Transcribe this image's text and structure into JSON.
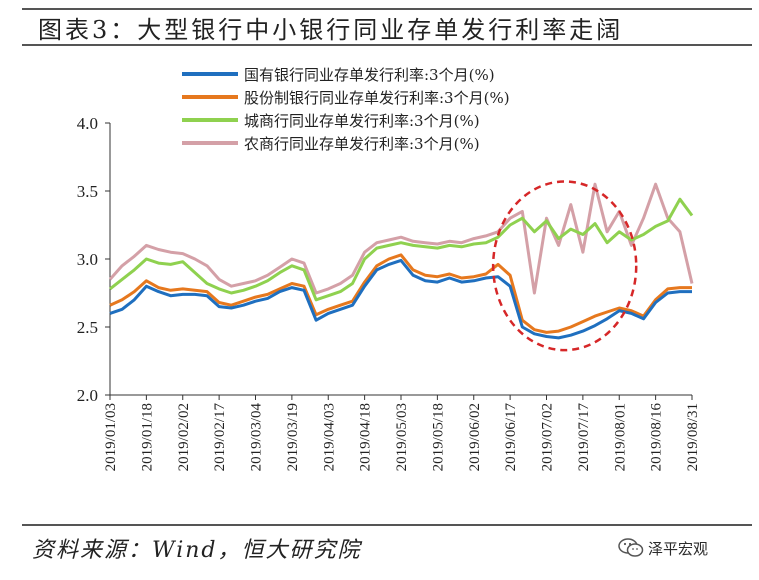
{
  "header": {
    "title": "图表3：大型银行中小银行同业存单发行利率走阔"
  },
  "footer": {
    "source": "资料来源：Wind，恒大研究院",
    "brand": "泽平宏观"
  },
  "chart_data": {
    "type": "line",
    "title": "",
    "xlabel": "",
    "ylabel": "",
    "ylim": [
      2.0,
      4.0
    ],
    "yticks": [
      "2.0",
      "2.5",
      "3.0",
      "3.5",
      "4.0"
    ],
    "x_tick_labels": [
      "2019/01/03",
      "2019/01/18",
      "2019/02/02",
      "2019/02/17",
      "2019/03/04",
      "2019/03/19",
      "2019/04/03",
      "2019/04/18",
      "2019/05/03",
      "2019/05/18",
      "2019/06/02",
      "2019/06/17",
      "2019/07/02",
      "2019/07/17",
      "2019/08/01",
      "2019/08/16",
      "2019/08/31"
    ],
    "legend_position": "top-left",
    "colors": {
      "state": "#1f6fbf",
      "joint": "#e6781e",
      "city": "#8fd14f",
      "rural": "#d4a0a7",
      "annotation": "#d62728"
    },
    "annotation": "dashed red ellipse highlighting 2019/06/10–2019/08/08",
    "x": [
      "2019/01/03",
      "2019/01/08",
      "2019/01/13",
      "2019/01/18",
      "2019/01/23",
      "2019/01/28",
      "2019/02/02",
      "2019/02/07",
      "2019/02/12",
      "2019/02/17",
      "2019/02/22",
      "2019/02/27",
      "2019/03/04",
      "2019/03/09",
      "2019/03/14",
      "2019/03/19",
      "2019/03/24",
      "2019/03/29",
      "2019/04/03",
      "2019/04/08",
      "2019/04/13",
      "2019/04/18",
      "2019/04/23",
      "2019/04/28",
      "2019/05/03",
      "2019/05/08",
      "2019/05/13",
      "2019/05/18",
      "2019/05/23",
      "2019/05/28",
      "2019/06/02",
      "2019/06/07",
      "2019/06/12",
      "2019/06/17",
      "2019/06/22",
      "2019/06/27",
      "2019/07/02",
      "2019/07/07",
      "2019/07/12",
      "2019/07/17",
      "2019/07/22",
      "2019/07/27",
      "2019/08/01",
      "2019/08/06",
      "2019/08/11",
      "2019/08/16",
      "2019/08/21",
      "2019/08/26",
      "2019/08/31"
    ],
    "series": [
      {
        "name": "国有银行同业存单发行利率:3个月(%)",
        "color_key": "state",
        "values": [
          2.6,
          2.63,
          2.7,
          2.8,
          2.76,
          2.73,
          2.74,
          2.74,
          2.73,
          2.65,
          2.64,
          2.66,
          2.69,
          2.71,
          2.76,
          2.79,
          2.77,
          2.55,
          2.6,
          2.63,
          2.66,
          2.8,
          2.92,
          2.96,
          2.99,
          2.88,
          2.84,
          2.83,
          2.86,
          2.83,
          2.84,
          2.86,
          2.87,
          2.8,
          2.5,
          2.45,
          2.43,
          2.42,
          2.44,
          2.47,
          2.51,
          2.56,
          2.62,
          2.6,
          2.56,
          2.68,
          2.75,
          2.76,
          2.76
        ]
      },
      {
        "name": "股份制银行同业存单发行利率:3个月(%)",
        "color_key": "joint",
        "values": [
          2.66,
          2.7,
          2.76,
          2.84,
          2.79,
          2.77,
          2.78,
          2.77,
          2.76,
          2.68,
          2.66,
          2.69,
          2.72,
          2.74,
          2.78,
          2.82,
          2.8,
          2.59,
          2.63,
          2.66,
          2.69,
          2.83,
          2.95,
          3.0,
          3.03,
          2.92,
          2.88,
          2.87,
          2.89,
          2.86,
          2.87,
          2.89,
          2.96,
          2.88,
          2.55,
          2.48,
          2.46,
          2.47,
          2.5,
          2.54,
          2.58,
          2.61,
          2.64,
          2.62,
          2.58,
          2.7,
          2.78,
          2.79,
          2.79
        ]
      },
      {
        "name": "城商行同业存单发行利率:3个月(%)",
        "color_key": "city",
        "values": [
          2.78,
          2.85,
          2.92,
          3.0,
          2.97,
          2.96,
          2.98,
          2.9,
          2.82,
          2.78,
          2.75,
          2.77,
          2.8,
          2.84,
          2.9,
          2.95,
          2.92,
          2.7,
          2.73,
          2.76,
          2.82,
          3.0,
          3.08,
          3.1,
          3.12,
          3.1,
          3.09,
          3.08,
          3.1,
          3.09,
          3.11,
          3.12,
          3.16,
          3.25,
          3.3,
          3.2,
          3.28,
          3.15,
          3.22,
          3.18,
          3.26,
          3.12,
          3.2,
          3.14,
          3.18,
          3.24,
          3.28,
          3.44,
          3.32
        ]
      },
      {
        "name": "农商行同业存单发行利率:3个月(%)",
        "color_key": "rural",
        "values": [
          2.85,
          2.95,
          3.02,
          3.1,
          3.07,
          3.05,
          3.04,
          3.0,
          2.95,
          2.85,
          2.8,
          2.82,
          2.84,
          2.88,
          2.94,
          3.0,
          2.97,
          2.75,
          2.78,
          2.82,
          2.88,
          3.05,
          3.12,
          3.14,
          3.16,
          3.13,
          3.12,
          3.11,
          3.13,
          3.12,
          3.15,
          3.17,
          3.2,
          3.3,
          3.35,
          2.75,
          3.3,
          3.1,
          3.4,
          3.05,
          3.55,
          3.2,
          3.35,
          3.1,
          3.3,
          3.55,
          3.3,
          3.2,
          2.82
        ]
      }
    ]
  }
}
